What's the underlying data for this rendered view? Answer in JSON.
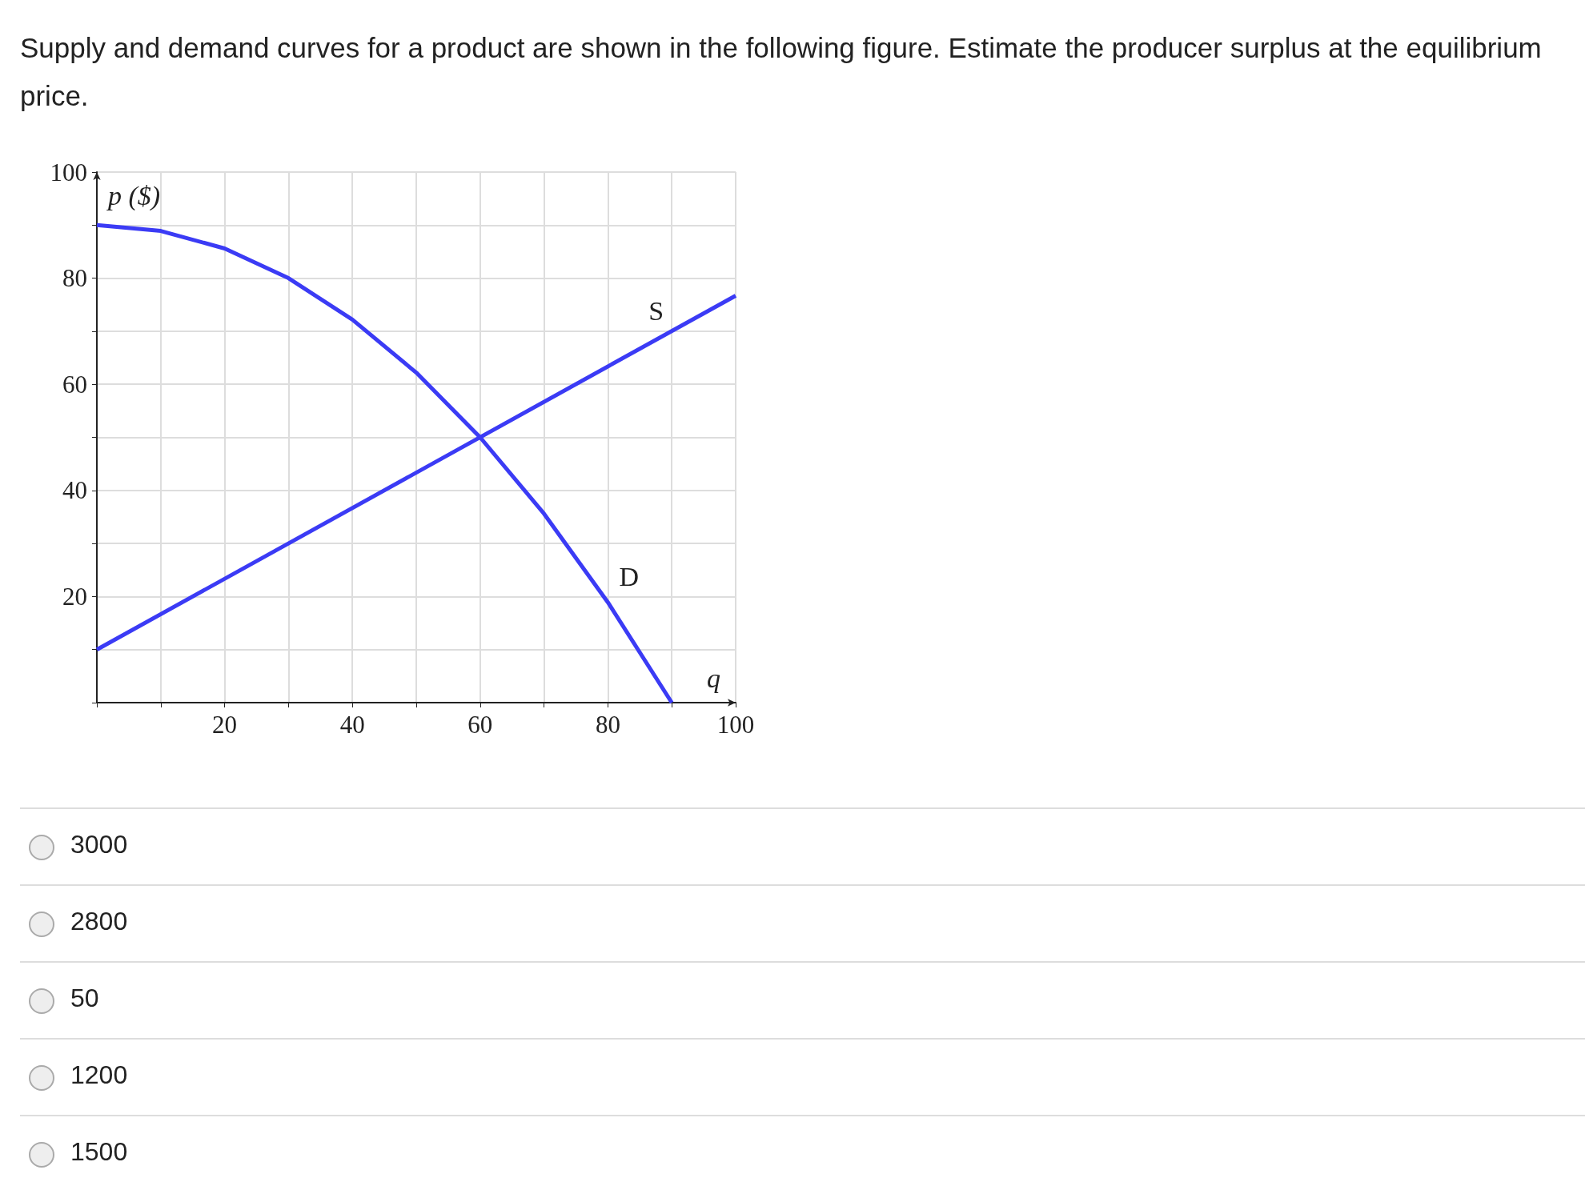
{
  "chart_data": {
    "type": "line",
    "title": "Supply and demand curves for a product are shown in the following figure. Estimate the producer surplus at the equilibrium price.",
    "xlabel": "q",
    "ylabel": "p ($)",
    "xlim": [
      0,
      100
    ],
    "ylim": [
      0,
      100
    ],
    "xticks": [
      {
        "value": 0,
        "label": null
      },
      {
        "value": 10,
        "label": null
      },
      20,
      {
        "value": 30,
        "label": null
      },
      40,
      {
        "value": 50,
        "label": null
      },
      60,
      {
        "value": 70,
        "label": null
      },
      80,
      {
        "value": 90,
        "label": null
      },
      100
    ],
    "yticks": [
      {
        "value": 0,
        "label": null
      },
      {
        "value": 10,
        "label": null
      },
      20,
      {
        "value": 30,
        "label": null
      },
      40,
      {
        "value": 50,
        "label": null
      },
      60,
      {
        "value": 70,
        "label": null
      },
      80,
      {
        "value": 90,
        "label": null
      },
      100
    ],
    "grid": true,
    "series": [
      {
        "color": "#3b3bf5",
        "x": [
          0,
          100
        ],
        "values": [
          10,
          76.7
        ]
      },
      {
        "color": "#3b3bf5",
        "x": [
          0,
          10,
          20,
          30,
          40,
          50,
          60,
          70,
          80,
          90
        ],
        "values": [
          90,
          88.9,
          85.6,
          80,
          72.2,
          62.2,
          50,
          35.6,
          18.9,
          0
        ]
      }
    ],
    "annotations": [
      {
        "text": "S",
        "x": 90,
        "y": 70
      },
      {
        "text": "D",
        "x": 80,
        "y": 20
      },
      "3000",
      "2800",
      "50",
      "1200",
      "1500"
    ]
  }
}
